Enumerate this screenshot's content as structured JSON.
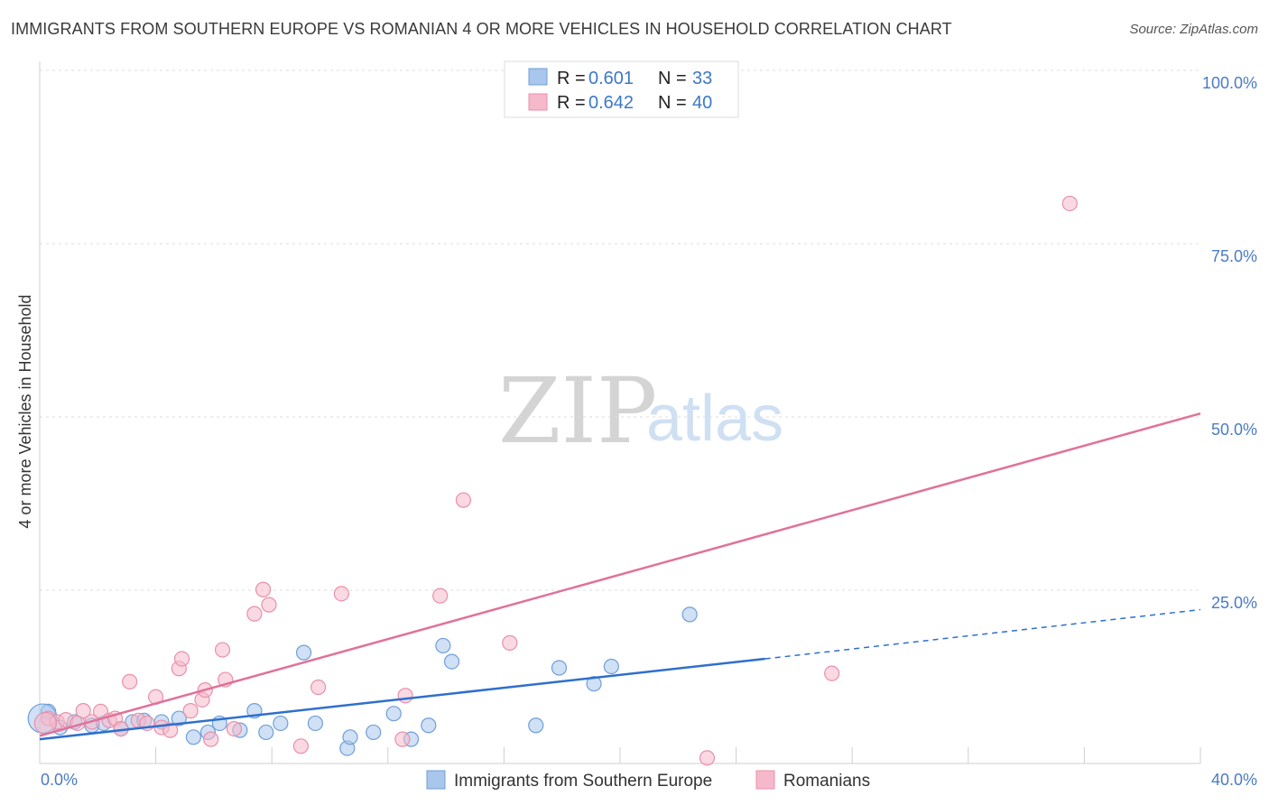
{
  "title": "IMMIGRANTS FROM SOUTHERN EUROPE VS ROMANIAN 4 OR MORE VEHICLES IN HOUSEHOLD CORRELATION CHART",
  "source": "Source: ZipAtlas.com",
  "watermark": {
    "zip": "ZIP",
    "atlas": "atlas"
  },
  "legend_top": [
    {
      "r_label": "R =",
      "r_value": "0.601",
      "n_label": "N =",
      "n_value": "33",
      "color": "#a9c6ec",
      "stroke": "#6f9fd8"
    },
    {
      "r_label": "R =",
      "r_value": "0.642",
      "n_label": "N =",
      "n_value": "40",
      "color": "#f6b9cb",
      "stroke": "#e890ab"
    }
  ],
  "legend_bottom": [
    {
      "label": "Immigrants from Southern Europe",
      "color": "#a9c6ec",
      "stroke": "#6f9fd8"
    },
    {
      "label": "Romanians",
      "color": "#f6b9cb",
      "stroke": "#e890ab"
    }
  ],
  "chart_data": {
    "type": "scatter",
    "title": "IMMIGRANTS FROM SOUTHERN EUROPE VS ROMANIAN 4 OR MORE VEHICLES IN HOUSEHOLD CORRELATION CHART",
    "xlabel": "",
    "ylabel": "4 or more Vehicles in Household",
    "xlim": [
      0,
      40
    ],
    "ylim": [
      0,
      100
    ],
    "x_tick_labels": [
      "0.0%",
      "40.0%"
    ],
    "y_ticks": [
      25,
      50,
      75,
      100
    ],
    "y_tick_labels": [
      "25.0%",
      "50.0%",
      "75.0%",
      "100.0%"
    ],
    "grid": true,
    "series": [
      {
        "name": "Immigrants from Southern Europe",
        "color": "#6f9fd8",
        "fill": "#a9c6ec",
        "line_color": "#2f6fce",
        "trend": {
          "x": [
            0,
            25
          ],
          "y": [
            3.5,
            15.1
          ],
          "dashed_to": [
            40,
            22.2
          ]
        },
        "points": [
          [
            0.3,
            7.5
          ],
          [
            0.7,
            5.2
          ],
          [
            1.2,
            6.0
          ],
          [
            1.8,
            5.5
          ],
          [
            2.2,
            5.8
          ],
          [
            2.8,
            5.0
          ],
          [
            3.2,
            6.0
          ],
          [
            3.6,
            6.2
          ],
          [
            4.2,
            6.0
          ],
          [
            4.8,
            6.5
          ],
          [
            5.3,
            3.8
          ],
          [
            5.8,
            4.5
          ],
          [
            6.2,
            5.8
          ],
          [
            6.9,
            4.8
          ],
          [
            7.4,
            7.6
          ],
          [
            7.8,
            4.5
          ],
          [
            8.3,
            5.8
          ],
          [
            9.1,
            16.0
          ],
          [
            9.5,
            5.8
          ],
          [
            10.6,
            2.2
          ],
          [
            10.7,
            3.8
          ],
          [
            11.5,
            4.5
          ],
          [
            12.2,
            7.2
          ],
          [
            12.8,
            3.5
          ],
          [
            13.4,
            5.5
          ],
          [
            13.9,
            17.0
          ],
          [
            14.2,
            14.7
          ],
          [
            17.1,
            5.5
          ],
          [
            17.9,
            13.8
          ],
          [
            19.1,
            11.5
          ],
          [
            19.7,
            14.0
          ],
          [
            22.4,
            21.5
          ],
          [
            0.1,
            6.5
          ]
        ]
      },
      {
        "name": "Romanians",
        "color": "#e890ab",
        "fill": "#f6b9cb",
        "line_color": "#e0729a",
        "trend": {
          "x": [
            0,
            40
          ],
          "y": [
            4.0,
            50.5
          ]
        },
        "points": [
          [
            0.3,
            6.5
          ],
          [
            0.6,
            6.0
          ],
          [
            0.9,
            6.3
          ],
          [
            1.3,
            5.8
          ],
          [
            1.5,
            7.6
          ],
          [
            1.8,
            6.0
          ],
          [
            2.1,
            7.5
          ],
          [
            2.4,
            6.2
          ],
          [
            2.6,
            6.5
          ],
          [
            2.8,
            5.0
          ],
          [
            3.1,
            11.8
          ],
          [
            3.4,
            6.2
          ],
          [
            3.7,
            5.8
          ],
          [
            4.0,
            9.6
          ],
          [
            4.2,
            5.2
          ],
          [
            4.5,
            4.8
          ],
          [
            4.8,
            13.7
          ],
          [
            4.9,
            15.1
          ],
          [
            5.2,
            7.6
          ],
          [
            5.6,
            9.2
          ],
          [
            5.7,
            10.6
          ],
          [
            5.9,
            3.5
          ],
          [
            6.3,
            16.4
          ],
          [
            6.4,
            12.1
          ],
          [
            6.7,
            5.0
          ],
          [
            7.4,
            21.6
          ],
          [
            7.7,
            25.1
          ],
          [
            7.9,
            22.9
          ],
          [
            9.0,
            2.5
          ],
          [
            9.6,
            11.0
          ],
          [
            10.4,
            24.5
          ],
          [
            12.5,
            3.5
          ],
          [
            12.6,
            9.8
          ],
          [
            13.8,
            24.2
          ],
          [
            14.6,
            38.0
          ],
          [
            16.2,
            17.4
          ],
          [
            23.0,
            0.8
          ],
          [
            27.3,
            13.0
          ],
          [
            35.5,
            80.8
          ],
          [
            0.2,
            5.8
          ]
        ]
      }
    ]
  }
}
